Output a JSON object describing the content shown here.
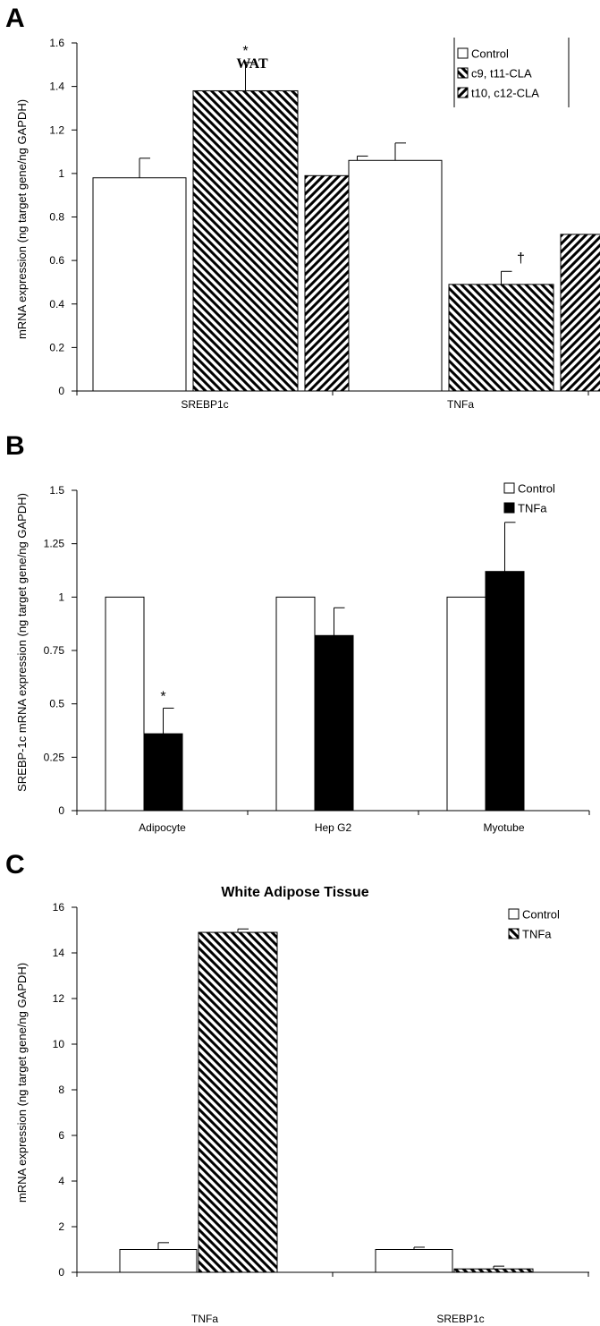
{
  "chart_data": [
    {
      "type": "bar",
      "panel": "A",
      "title": "WAT",
      "ylabel": "mRNA expression (ng target gene/ng GAPDH)",
      "xlabel": "",
      "ylim": [
        0,
        1.6
      ],
      "yticks": [
        "0",
        "0.2",
        "0.4",
        "0.6",
        "0.8",
        "1",
        "1.2",
        "1.4",
        "1.6"
      ],
      "categories": [
        "SREBP1c",
        "TNFa"
      ],
      "series": [
        {
          "name": "Control",
          "values": [
            0.98,
            1.06
          ],
          "errors": [
            0.09,
            0.08
          ],
          "pattern": "open"
        },
        {
          "name": "c9, t11-CLA",
          "values": [
            1.38,
            0.49
          ],
          "errors": [
            0.13,
            0.06
          ],
          "pattern": "hatch-back"
        },
        {
          "name": "t10, c12-CLA",
          "values": [
            0.99,
            0.72
          ],
          "errors": [
            0.09,
            0.17
          ],
          "pattern": "hatch-fwd"
        }
      ],
      "annotations": [
        {
          "text": "*",
          "category": 0,
          "series": 1
        },
        {
          "text": "†",
          "category": 1,
          "series": 1
        }
      ],
      "legend": "top-right",
      "grid": false
    },
    {
      "type": "bar",
      "panel": "B",
      "title": "",
      "ylabel": "SREBP-1c mRNA expression (ng target gene/ng GAPDH)",
      "xlabel": "",
      "ylim": [
        0,
        1.5
      ],
      "yticks": [
        "0",
        "0.25",
        "0.5",
        "0.75",
        "1",
        "1.25",
        "1.5"
      ],
      "categories": [
        "Adipocyte",
        "Hep G2",
        "Myotube"
      ],
      "series": [
        {
          "name": "Control",
          "values": [
            1.0,
            1.0,
            1.0
          ],
          "errors": [
            0,
            0,
            0
          ],
          "pattern": "open"
        },
        {
          "name": "TNFa",
          "values": [
            0.36,
            0.82,
            1.12
          ],
          "errors": [
            0.12,
            0.13,
            0.23
          ],
          "pattern": "solid"
        }
      ],
      "annotations": [
        {
          "text": "*",
          "category": 0,
          "series": 1
        }
      ],
      "legend": "top-right",
      "grid": false
    },
    {
      "type": "bar",
      "panel": "C",
      "title": "White Adipose Tissue",
      "ylabel": "mRNA expression (ng target gene/ng GAPDH)",
      "xlabel": "",
      "ylim": [
        0,
        16
      ],
      "yticks": [
        "0",
        "2",
        "4",
        "6",
        "8",
        "10",
        "12",
        "14",
        "16"
      ],
      "categories": [
        "TNFa",
        "SREBP1c"
      ],
      "series": [
        {
          "name": "Control",
          "values": [
            1.0,
            1.0
          ],
          "errors": [
            0.3,
            0.1
          ],
          "pattern": "open"
        },
        {
          "name": "TNFa",
          "values": [
            14.9,
            0.15
          ],
          "errors": [
            0.15,
            0.12
          ],
          "pattern": "hatch-back"
        }
      ],
      "annotations": [],
      "legend": "top-right",
      "grid": false
    }
  ]
}
